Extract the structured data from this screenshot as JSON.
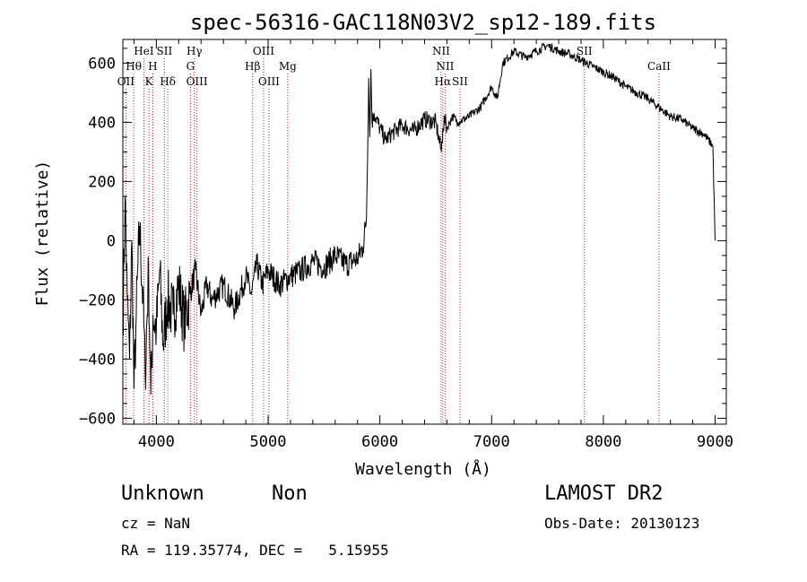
{
  "chart_data": {
    "type": "line",
    "title": "spec-56316-GAC118N03V2_sp12-189.fits",
    "xlabel": "Wavelength (Å)",
    "ylabel": "Flux (relative)",
    "xlim": [
      3700,
      9100
    ],
    "ylim": [
      -620,
      680
    ],
    "xticks": [
      4000,
      5000,
      6000,
      7000,
      8000,
      9000
    ],
    "yticks": [
      -600,
      -400,
      -200,
      0,
      200,
      400,
      600
    ],
    "grid": false,
    "series": [
      {
        "color": "#000000",
        "x": [
          3700,
          3720,
          3740,
          3760,
          3780,
          3800,
          3820,
          3850,
          3880,
          3900,
          3930,
          3950,
          3970,
          4000,
          4030,
          4060,
          4100,
          4150,
          4200,
          4250,
          4300,
          4350,
          4400,
          4450,
          4500,
          4600,
          4700,
          4800,
          4850,
          4900,
          4950,
          5000,
          5100,
          5200,
          5300,
          5400,
          5500,
          5600,
          5700,
          5800,
          5850,
          5880,
          5900,
          5910,
          5920,
          5930,
          5950,
          6000,
          6050,
          6100,
          6200,
          6300,
          6400,
          6500,
          6550,
          6563,
          6580,
          6600,
          6650,
          6700,
          6800,
          6900,
          7000,
          7050,
          7100,
          7200,
          7300,
          7400,
          7500,
          7600,
          7700,
          7800,
          7900,
          8000,
          8100,
          8200,
          8300,
          8400,
          8500,
          8600,
          8700,
          8800,
          8900,
          8980,
          9000
        ],
        "y": [
          -300,
          150,
          -200,
          -400,
          0,
          -500,
          -250,
          50,
          -200,
          -450,
          -100,
          -520,
          -250,
          -300,
          -100,
          -350,
          -200,
          -250,
          -150,
          -280,
          -180,
          -100,
          -250,
          -150,
          -200,
          -150,
          -230,
          -120,
          -180,
          -80,
          -150,
          -100,
          -150,
          -120,
          -100,
          -70,
          -90,
          -50,
          -80,
          -60,
          -20,
          80,
          550,
          350,
          580,
          400,
          430,
          380,
          340,
          360,
          390,
          370,
          410,
          400,
          300,
          380,
          410,
          380,
          420,
          400,
          420,
          450,
          520,
          480,
          600,
          640,
          620,
          640,
          660,
          640,
          630,
          610,
          590,
          570,
          550,
          520,
          500,
          480,
          450,
          420,
          410,
          380,
          360,
          320,
          0
        ]
      }
    ],
    "lines": [
      {
        "label": "HeI",
        "x": 3888,
        "row": 1
      },
      {
        "label": "SII",
        "x": 4072,
        "row": 1
      },
      {
        "label": "Hγ",
        "x": 4340,
        "row": 1
      },
      {
        "label": "OIII",
        "x": 4959,
        "row": 1
      },
      {
        "label": "NII",
        "x": 6548,
        "row": 1
      },
      {
        "label": "SII",
        "x": 7830,
        "row": 1
      },
      {
        "label": "Hθ",
        "x": 3797,
        "row": 2
      },
      {
        "label": "H",
        "x": 3968,
        "row": 2
      },
      {
        "label": "G",
        "x": 4305,
        "row": 2
      },
      {
        "label": "Hβ",
        "x": 4861,
        "row": 2
      },
      {
        "label": "Mg",
        "x": 5175,
        "row": 2
      },
      {
        "label": "NII",
        "x": 6584,
        "row": 2
      },
      {
        "label": "CaII",
        "x": 8498,
        "row": 2
      },
      {
        "label": "OII",
        "x": 3727,
        "row": 3
      },
      {
        "label": "K",
        "x": 3934,
        "row": 3
      },
      {
        "label": "Hδ",
        "x": 4102,
        "row": 3
      },
      {
        "label": "OIII",
        "x": 4363,
        "row": 3
      },
      {
        "label": "OIII",
        "x": 5007,
        "row": 3
      },
      {
        "label": "Hα",
        "x": 6563,
        "row": 3
      },
      {
        "label": "SII",
        "x": 6717,
        "row": 3
      }
    ]
  },
  "info": {
    "class_label": "Unknown",
    "subclass_label": "Non",
    "survey_label": "LAMOST DR2",
    "cz_text": "cz = NaN",
    "obs_date_text": "Obs-Date: 20130123",
    "radec_text": "RA = 119.35774, DEC =   5.15955"
  }
}
